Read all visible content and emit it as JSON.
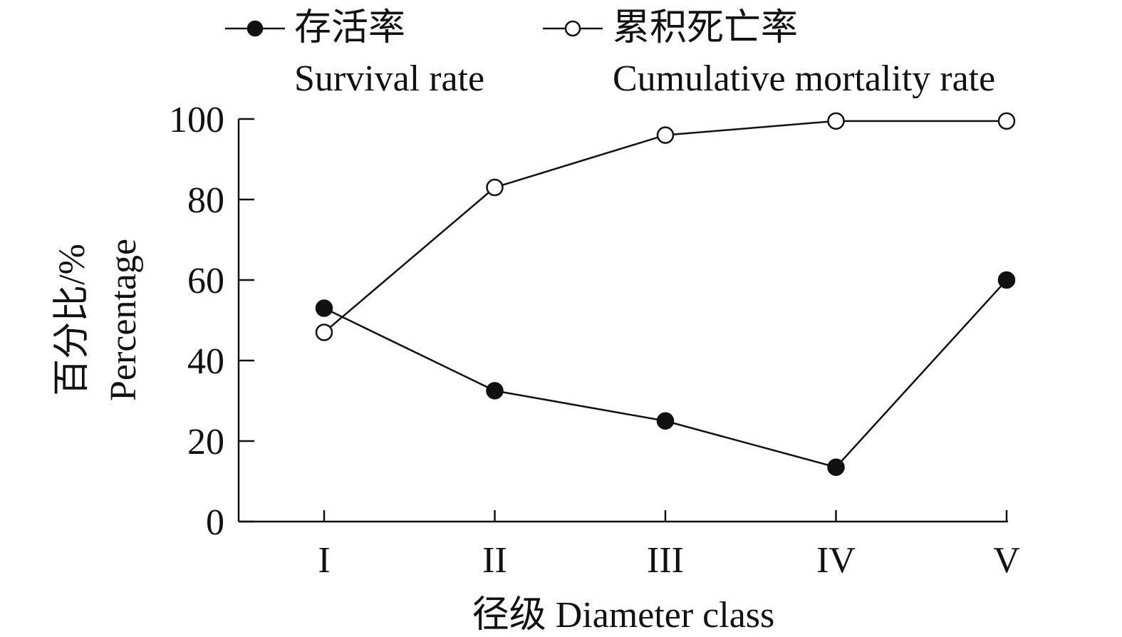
{
  "chart_data": {
    "type": "line",
    "categories": [
      "I",
      "II",
      "III",
      "IV",
      "V"
    ],
    "xlabel": "径级 Diameter class",
    "ylabel_cn": "百分比/%",
    "ylabel_en": "Percentage",
    "ylim": [
      0,
      100
    ],
    "yticks": [
      0,
      20,
      40,
      60,
      80,
      100
    ],
    "ytick_labels": [
      "0",
      "20",
      "40",
      "60",
      "80",
      "100"
    ],
    "grid": false,
    "legend_position": "top",
    "series": [
      {
        "name_cn": "存活率",
        "name_en": "Survival rate",
        "marker": "filled-circle",
        "values": [
          53,
          32.5,
          25,
          13.5,
          60
        ]
      },
      {
        "name_cn": "累积死亡率",
        "name_en": "Cumulative mortality rate",
        "marker": "open-circle",
        "values": [
          47,
          83,
          96,
          99.5,
          99.5
        ]
      }
    ],
    "colors": {
      "line": "#111111",
      "marker_fill_filled": "#111111",
      "marker_fill_open": "#ffffff"
    }
  }
}
